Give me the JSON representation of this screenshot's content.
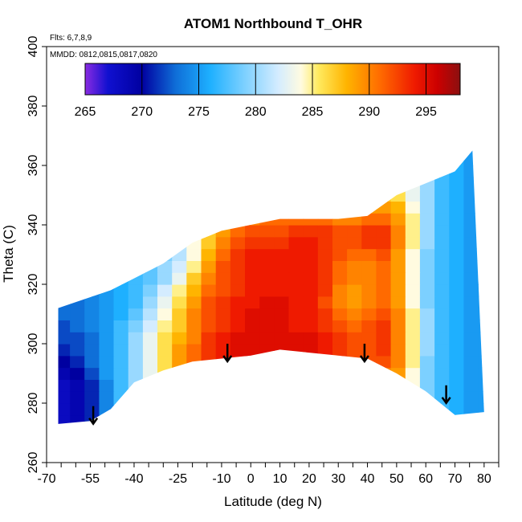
{
  "chart_data": {
    "type": "heatmap",
    "title": "ATOM1 Northbound T_OHR",
    "notes": [
      "Flts: 6,7,8,9",
      "MMDD: 0812,0815,0817,0820"
    ],
    "xlabel": "Latitude (deg N)",
    "ylabel": "Theta (C)",
    "xlim": [
      -70,
      85
    ],
    "ylim": [
      260,
      400
    ],
    "x_ticks": [
      -70,
      -55,
      -40,
      -25,
      -10,
      0,
      10,
      20,
      30,
      40,
      50,
      60,
      70,
      80
    ],
    "x_tick_labels": [
      "-70",
      "-55",
      "-40",
      "-25",
      "-10",
      "0",
      "10",
      "20",
      "30",
      "40",
      "50",
      "60",
      "70",
      "80"
    ],
    "y_ticks": [
      260,
      280,
      300,
      320,
      340,
      360,
      380,
      400
    ],
    "y_tick_labels": [
      "260",
      "280",
      "300",
      "320",
      "340",
      "360",
      "380",
      "400"
    ],
    "colorbar": {
      "range": [
        265,
        298
      ],
      "ticks": [
        265,
        270,
        275,
        280,
        285,
        290,
        295
      ],
      "tick_labels": [
        "265",
        "270",
        "275",
        "280",
        "285",
        "290",
        "295"
      ],
      "stops": [
        {
          "v": 265,
          "c": "#8a2be2"
        },
        {
          "v": 267,
          "c": "#1010d0"
        },
        {
          "v": 270,
          "c": "#0000a0"
        },
        {
          "v": 273,
          "c": "#0f6fd8"
        },
        {
          "v": 276,
          "c": "#1eb0ff"
        },
        {
          "v": 279,
          "c": "#7cd0ff"
        },
        {
          "v": 282,
          "c": "#d4ecff"
        },
        {
          "v": 284,
          "c": "#fffbe0"
        },
        {
          "v": 285.5,
          "c": "#ffeb60"
        },
        {
          "v": 288,
          "c": "#ffb400"
        },
        {
          "v": 291,
          "c": "#ff6a00"
        },
        {
          "v": 294,
          "c": "#ef1a00"
        },
        {
          "v": 296,
          "c": "#cc0000"
        },
        {
          "v": 298,
          "c": "#8b1010"
        }
      ]
    },
    "domain_top": [
      [
        -66,
        312
      ],
      [
        -48,
        318
      ],
      [
        -40,
        322
      ],
      [
        -30,
        327
      ],
      [
        -20,
        334
      ],
      [
        -10,
        338
      ],
      [
        0,
        340
      ],
      [
        10,
        342
      ],
      [
        20,
        342
      ],
      [
        30,
        342
      ],
      [
        40,
        343
      ],
      [
        50,
        350
      ],
      [
        60,
        354
      ],
      [
        70,
        358
      ],
      [
        76,
        365
      ]
    ],
    "domain_bottom": [
      [
        -66,
        273
      ],
      [
        -55,
        274
      ],
      [
        -48,
        278
      ],
      [
        -40,
        287
      ],
      [
        -30,
        291
      ],
      [
        -20,
        294
      ],
      [
        -10,
        295
      ],
      [
        0,
        296
      ],
      [
        10,
        298
      ],
      [
        20,
        297
      ],
      [
        30,
        296
      ],
      [
        40,
        295
      ],
      [
        50,
        290
      ],
      [
        60,
        284
      ],
      [
        70,
        276
      ],
      [
        80,
        277
      ]
    ],
    "grid": {
      "lat": [
        -66,
        -61,
        -56,
        -51,
        -46,
        -41,
        -36,
        -31,
        -26,
        -21,
        -16,
        -11,
        -6,
        -1,
        4,
        9,
        14,
        19,
        24,
        29,
        34,
        39,
        44,
        49,
        54,
        59,
        64,
        69,
        74,
        79
      ],
      "theta": [
        272,
        276,
        280,
        284,
        288,
        292,
        296,
        300,
        304,
        308,
        312,
        316,
        320,
        324,
        328,
        332,
        336,
        340,
        344,
        348,
        352,
        356,
        360,
        364
      ],
      "t_ohr": [
        [
          268,
          269,
          271,
          274,
          277,
          280,
          283,
          286,
          290,
          292,
          293,
          294,
          294,
          294,
          294,
          295,
          295,
          295,
          294,
          293,
          292,
          291,
          290,
          289,
          284,
          279,
          277,
          276,
          275,
          275
        ],
        [
          268,
          269,
          271,
          274,
          277,
          280,
          283,
          286,
          290,
          292,
          293,
          294,
          294,
          294,
          294,
          295,
          295,
          295,
          294,
          293,
          292,
          291,
          290,
          289,
          284,
          279,
          277,
          276,
          275,
          275
        ],
        [
          268,
          269,
          271,
          274,
          277,
          280,
          283,
          286,
          290,
          292,
          293,
          294,
          294,
          294,
          294,
          295,
          295,
          295,
          294,
          293,
          292,
          291,
          290,
          289,
          284,
          279,
          277,
          276,
          275,
          275
        ],
        [
          268,
          269,
          271,
          274,
          277,
          280,
          283,
          286,
          290,
          292,
          293,
          294,
          294,
          294,
          294,
          295,
          295,
          295,
          294,
          293,
          292,
          291,
          290,
          289,
          284,
          279,
          277,
          276,
          275,
          275
        ],
        [
          269,
          270,
          272,
          275,
          277,
          280,
          283,
          286,
          289,
          292,
          293,
          294,
          294,
          294,
          294,
          295,
          295,
          295,
          294,
          293,
          292,
          291,
          290,
          289,
          284,
          279,
          277,
          276,
          275,
          275
        ],
        [
          270,
          271,
          273,
          275,
          277,
          280,
          283,
          286,
          289,
          291,
          293,
          294,
          294,
          295,
          295,
          295,
          295,
          295,
          294,
          293,
          292,
          292,
          292,
          290,
          285,
          279,
          277,
          276,
          275,
          275
        ],
        [
          271,
          272,
          273,
          275,
          277,
          280,
          283,
          286,
          289,
          291,
          293,
          294,
          295,
          295,
          295,
          295,
          295,
          295,
          294,
          293,
          292,
          292,
          293,
          290,
          285,
          280,
          277,
          276,
          275,
          275
        ],
        [
          272,
          272,
          273,
          275,
          277,
          280,
          283,
          286,
          288,
          290,
          293,
          294,
          295,
          295,
          295,
          295,
          295,
          295,
          294,
          293,
          292,
          292,
          293,
          290,
          285,
          280,
          277,
          276,
          275,
          275
        ],
        [
          272,
          273,
          274,
          275,
          277,
          279,
          282,
          285,
          287,
          290,
          292,
          293,
          294,
          295,
          295,
          295,
          294,
          294,
          293,
          292,
          291,
          292,
          293,
          290,
          285,
          280,
          277,
          276,
          275,
          275
        ],
        [
          273,
          273,
          274,
          275,
          276,
          278,
          281,
          284,
          287,
          290,
          292,
          293,
          294,
          295,
          295,
          295,
          294,
          294,
          293,
          291,
          290,
          291,
          292,
          290,
          285,
          280,
          277,
          276,
          275,
          275
        ],
        [
          273,
          273,
          274,
          275,
          276,
          277,
          280,
          283,
          286,
          289,
          292,
          293,
          294,
          294,
          295,
          295,
          294,
          294,
          292,
          290,
          289,
          290,
          291,
          289,
          284,
          279,
          277,
          276,
          275,
          275
        ],
        [
          273,
          273,
          274,
          275,
          276,
          277,
          279,
          282,
          285,
          288,
          291,
          292,
          293,
          294,
          294,
          294,
          294,
          294,
          293,
          290,
          289,
          290,
          291,
          289,
          284,
          279,
          277,
          276,
          275,
          275
        ],
        [
          273,
          273,
          274,
          275,
          276,
          277,
          278,
          280,
          283,
          287,
          290,
          292,
          293,
          294,
          294,
          294,
          294,
          294,
          293,
          291,
          290,
          290,
          291,
          289,
          284,
          279,
          277,
          276,
          275,
          275
        ],
        [
          273,
          273,
          274,
          275,
          276,
          277,
          278,
          280,
          282,
          285,
          289,
          292,
          293,
          294,
          294,
          294,
          294,
          294,
          293,
          291,
          290,
          290,
          291,
          289,
          284,
          279,
          277,
          276,
          275,
          275
        ],
        [
          273,
          273,
          274,
          275,
          276,
          277,
          278,
          279,
          281,
          284,
          288,
          291,
          293,
          294,
          294,
          294,
          294,
          294,
          293,
          292,
          291,
          291,
          292,
          289,
          284,
          279,
          277,
          276,
          275,
          275
        ],
        [
          273,
          273,
          274,
          275,
          276,
          277,
          278,
          279,
          281,
          284,
          287,
          290,
          292,
          293,
          293,
          293,
          294,
          294,
          293,
          292,
          292,
          293,
          293,
          290,
          285,
          280,
          277,
          276,
          275,
          275
        ],
        [
          273,
          273,
          274,
          275,
          276,
          277,
          278,
          280,
          282,
          285,
          287,
          289,
          291,
          292,
          292,
          292,
          293,
          293,
          293,
          292,
          292,
          293,
          293,
          290,
          285,
          280,
          277,
          276,
          275,
          275
        ],
        [
          273,
          273,
          274,
          275,
          276,
          277,
          278,
          280,
          282,
          285,
          287,
          289,
          290,
          290,
          291,
          291,
          291,
          291,
          291,
          290,
          290,
          291,
          291,
          289,
          285,
          280,
          277,
          276,
          275,
          275
        ],
        [
          273,
          273,
          274,
          275,
          276,
          277,
          278,
          280,
          282,
          285,
          287,
          288,
          289,
          289,
          289,
          289,
          289,
          289,
          289,
          288,
          288,
          289,
          289,
          288,
          284,
          280,
          277,
          276,
          275,
          275
        ],
        [
          273,
          273,
          274,
          275,
          276,
          277,
          278,
          280,
          282,
          285,
          286,
          287,
          287,
          287,
          287,
          287,
          287,
          287,
          287,
          287,
          287,
          287,
          287,
          286,
          283,
          280,
          277,
          276,
          275,
          275
        ],
        [
          273,
          273,
          274,
          275,
          276,
          277,
          278,
          280,
          282,
          284,
          285,
          286,
          286,
          286,
          286,
          286,
          286,
          286,
          286,
          286,
          286,
          286,
          286,
          285,
          283,
          280,
          277,
          276,
          275,
          275
        ],
        [
          273,
          273,
          274,
          275,
          276,
          277,
          278,
          280,
          282,
          284,
          285,
          285,
          285,
          285,
          285,
          285,
          285,
          285,
          285,
          285,
          285,
          285,
          285,
          285,
          283,
          280,
          277,
          276,
          275,
          275
        ],
        [
          273,
          273,
          274,
          275,
          276,
          277,
          278,
          280,
          282,
          284,
          285,
          285,
          285,
          285,
          285,
          285,
          285,
          285,
          285,
          285,
          285,
          285,
          285,
          285,
          283,
          280,
          277,
          276,
          275,
          275
        ],
        [
          273,
          273,
          274,
          275,
          276,
          277,
          278,
          280,
          282,
          284,
          285,
          285,
          285,
          285,
          285,
          285,
          285,
          285,
          285,
          285,
          285,
          285,
          285,
          285,
          283,
          280,
          277,
          276,
          275,
          275
        ]
      ]
    },
    "arrows": [
      {
        "lat": -54,
        "theta": 279
      },
      {
        "lat": -8,
        "theta": 300
      },
      {
        "lat": 39,
        "theta": 300
      },
      {
        "lat": 67,
        "theta": 286
      }
    ]
  }
}
